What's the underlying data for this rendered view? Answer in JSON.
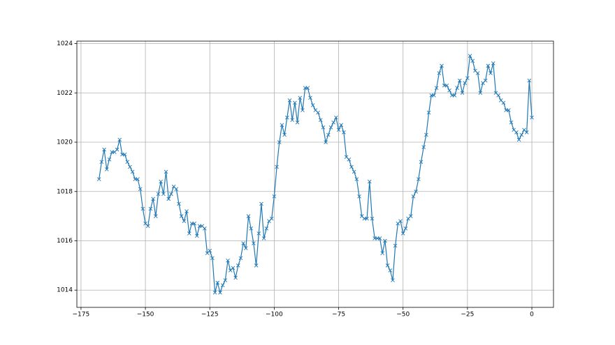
{
  "chart_data": {
    "type": "line",
    "color": "#1f77b4",
    "marker": "x",
    "grid": true,
    "x": [
      -168,
      -167,
      -166,
      -165,
      -164,
      -163,
      -162,
      -161,
      -160,
      -159,
      -158,
      -157,
      -156,
      -155,
      -154,
      -153,
      -152,
      -151,
      -150,
      -149,
      -148,
      -147,
      -146,
      -145,
      -144,
      -143,
      -142,
      -141,
      -140,
      -139,
      -138,
      -137,
      -136,
      -135,
      -134,
      -133,
      -132,
      -131,
      -130,
      -129,
      -128,
      -127,
      -126,
      -125,
      -124,
      -123,
      -122,
      -121,
      -120,
      -119,
      -118,
      -117,
      -116,
      -115,
      -114,
      -113,
      -112,
      -111,
      -110,
      -109,
      -108,
      -107,
      -106,
      -105,
      -104,
      -103,
      -102,
      -101,
      -100,
      -99,
      -98,
      -97,
      -96,
      -95,
      -94,
      -93,
      -92,
      -91,
      -90,
      -89,
      -88,
      -87,
      -86,
      -85,
      -84,
      -83,
      -82,
      -81,
      -80,
      -79,
      -78,
      -77,
      -76,
      -75,
      -74,
      -73,
      -72,
      -71,
      -70,
      -69,
      -68,
      -67,
      -66,
      -65,
      -64,
      -63,
      -62,
      -61,
      -60,
      -59,
      -58,
      -57,
      -56,
      -55,
      -54,
      -53,
      -52,
      -51,
      -50,
      -49,
      -48,
      -47,
      -46,
      -45,
      -44,
      -43,
      -42,
      -41,
      -40,
      -39,
      -38,
      -37,
      -36,
      -35,
      -34,
      -33,
      -32,
      -31,
      -30,
      -29,
      -28,
      -27,
      -26,
      -25,
      -24,
      -23,
      -22,
      -21,
      -20,
      -19,
      -18,
      -17,
      -16,
      -15,
      -14,
      -13,
      -12,
      -11,
      -10,
      -9,
      -8,
      -7,
      -6,
      -5,
      -4,
      -3,
      -2,
      -1,
      0
    ],
    "values": [
      1018.5,
      1019.2,
      1019.7,
      1018.9,
      1019.3,
      1019.6,
      1019.6,
      1019.7,
      1020.1,
      1019.5,
      1019.5,
      1019.2,
      1019.0,
      1018.8,
      1018.5,
      1018.5,
      1018.1,
      1017.3,
      1016.7,
      1016.6,
      1017.3,
      1017.7,
      1017.0,
      1017.9,
      1018.4,
      1017.9,
      1018.8,
      1017.7,
      1017.9,
      1018.2,
      1018.1,
      1017.5,
      1017.0,
      1016.8,
      1017.2,
      1016.3,
      1016.7,
      1016.7,
      1016.2,
      1016.6,
      1016.6,
      1016.5,
      1015.5,
      1015.6,
      1015.3,
      1013.9,
      1014.3,
      1013.9,
      1014.2,
      1014.4,
      1015.2,
      1014.8,
      1014.9,
      1014.5,
      1015.0,
      1015.3,
      1015.9,
      1015.7,
      1017.0,
      1016.5,
      1015.9,
      1015.0,
      1016.3,
      1017.5,
      1016.1,
      1016.5,
      1016.8,
      1016.9,
      1017.8,
      1019.0,
      1020.0,
      1020.7,
      1020.3,
      1021.0,
      1021.7,
      1020.9,
      1021.6,
      1020.8,
      1021.8,
      1021.3,
      1022.2,
      1022.2,
      1021.8,
      1021.5,
      1021.3,
      1021.2,
      1020.9,
      1020.6,
      1020.0,
      1020.3,
      1020.6,
      1020.8,
      1021.0,
      1020.5,
      1020.7,
      1020.4,
      1019.4,
      1019.3,
      1019.0,
      1018.8,
      1018.5,
      1017.8,
      1017.0,
      1016.9,
      1016.9,
      1018.4,
      1016.9,
      1016.1,
      1016.1,
      1016.1,
      1015.5,
      1016.0,
      1015.0,
      1014.8,
      1014.4,
      1015.8,
      1016.7,
      1016.8,
      1016.3,
      1016.5,
      1016.9,
      1017.0,
      1017.8,
      1018.0,
      1018.5,
      1019.2,
      1019.8,
      1020.3,
      1021.2,
      1021.9,
      1021.9,
      1022.2,
      1022.8,
      1023.1,
      1022.3,
      1022.3,
      1022.1,
      1021.9,
      1021.9,
      1022.2,
      1022.5,
      1022.0,
      1022.4,
      1022.6,
      1023.5,
      1023.3,
      1022.9,
      1022.8,
      1022.0,
      1022.4,
      1022.5,
      1023.1,
      1022.8,
      1023.2,
      1022.0,
      1021.9,
      1021.7,
      1021.6,
      1021.3,
      1021.3,
      1020.8,
      1020.5,
      1020.4,
      1020.1,
      1020.3,
      1020.5,
      1020.4,
      1022.5,
      1021.0
    ],
    "xlim": [
      -176.6,
      8.4
    ],
    "ylim": [
      1013.3,
      1024.1
    ],
    "xticks": [
      {
        "value": -175,
        "label": "−175"
      },
      {
        "value": -150,
        "label": "−150"
      },
      {
        "value": -125,
        "label": "−125"
      },
      {
        "value": -100,
        "label": "−100"
      },
      {
        "value": -75,
        "label": "−75"
      },
      {
        "value": -50,
        "label": "−50"
      },
      {
        "value": -25,
        "label": "−25"
      },
      0
    ],
    "yticks": [
      1014,
      1016,
      1018,
      1020,
      1022,
      1024
    ]
  }
}
